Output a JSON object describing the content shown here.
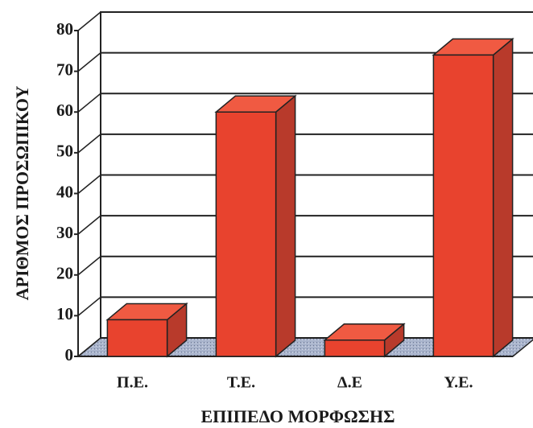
{
  "chart_data": {
    "type": "bar3d",
    "categories": [
      "Π.Ε.",
      "Τ.Ε.",
      "Δ.Ε",
      "Υ.Ε."
    ],
    "values": [
      9,
      60,
      4,
      74
    ],
    "color": "#e8432e",
    "xlabel": "ΕΠΙΠΕΔΟ ΜΟΡΦΩΣΗΣ",
    "ylabel": "ΑΡΙΘΜΟΣ ΠΡΟΣΩΠΙΚΟΥ",
    "ylim": [
      0,
      80
    ],
    "yticks": [
      0,
      10,
      20,
      30,
      40,
      50,
      60,
      70,
      80
    ],
    "grid": true
  }
}
